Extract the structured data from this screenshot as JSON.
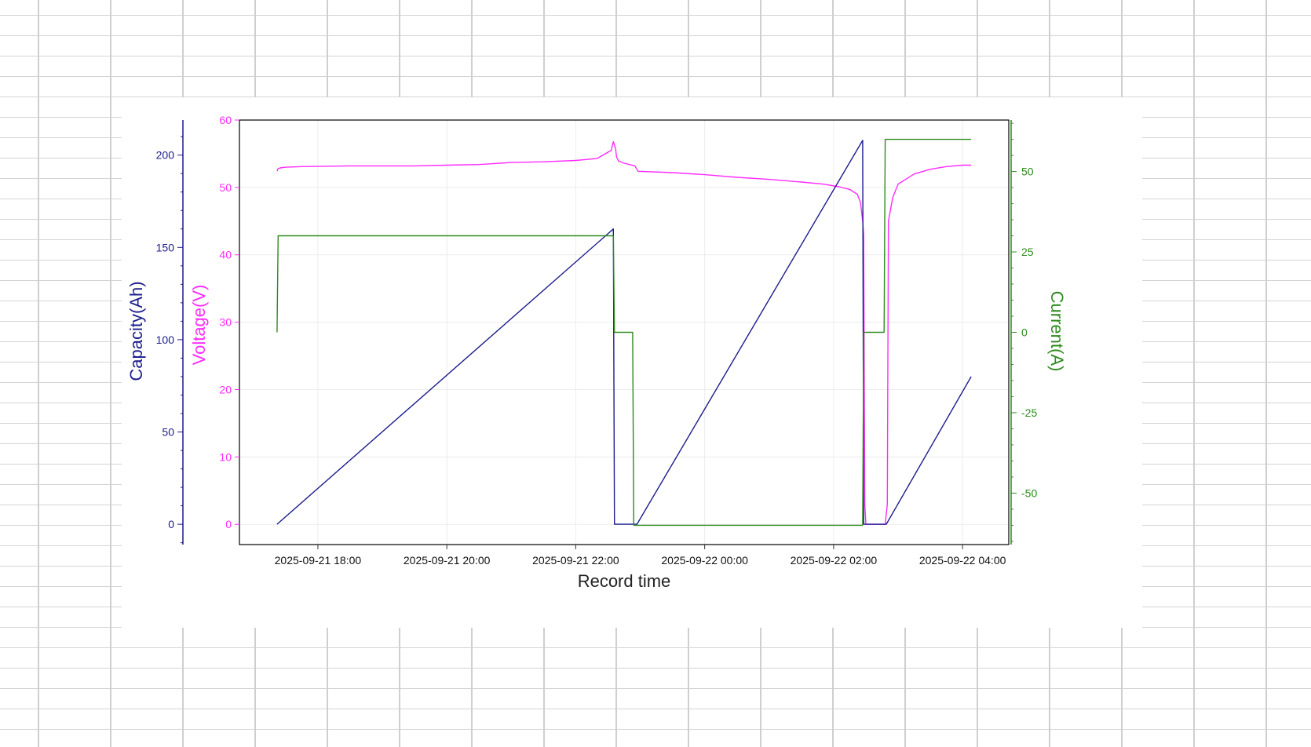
{
  "chart_data": {
    "type": "line",
    "xlabel": "Record time",
    "x_tick_labels": [
      "2025-09-21 18:00",
      "2025-09-21 20:00",
      "2025-09-21 22:00",
      "2025-09-22 00:00",
      "2025-09-22 02:00",
      "2025-09-22 04:00"
    ],
    "x_ticks": [
      "2025-09-21T18:00",
      "2025-09-21T20:00",
      "2025-09-21T22:00",
      "2025-09-22T00:00",
      "2025-09-22T02:00",
      "2025-09-22T04:00"
    ],
    "xlim": [
      "2025-09-21T16:47",
      "2025-09-22T04:43"
    ],
    "grid": true,
    "axes": {
      "voltage": {
        "label": "Voltage(V)",
        "side": "left-inner",
        "ylim": [
          -3,
          60
        ],
        "ticks": [
          0,
          10,
          20,
          30,
          40,
          50,
          60
        ],
        "color": "#ff2bff"
      },
      "capacity": {
        "label": "Capacity(Ah)",
        "side": "left-outer",
        "ylim": [
          -11,
          219
        ],
        "ticks": [
          0,
          50,
          100,
          150,
          200
        ],
        "color": "#1c1c8c"
      },
      "current": {
        "label": "Current(A)",
        "side": "right",
        "ylim": [
          -66,
          66
        ],
        "ticks": [
          50,
          25,
          0,
          -25,
          -50
        ],
        "tick_labels": [
          "50",
          "25",
          "0",
          "-25",
          "-50"
        ],
        "color": "#2e8b1e"
      }
    },
    "series": [
      {
        "name": "Voltage(V)",
        "axis": "voltage",
        "color": "#ff2bff",
        "x": [
          "2025-09-21T17:22",
          "2025-09-21T17:23",
          "2025-09-21T17:25",
          "2025-09-21T17:30",
          "2025-09-21T17:45",
          "2025-09-21T18:30",
          "2025-09-21T19:30",
          "2025-09-21T20:00",
          "2025-09-21T20:30",
          "2025-09-21T21:00",
          "2025-09-21T21:30",
          "2025-09-21T22:00",
          "2025-09-21T22:20",
          "2025-09-21T22:33",
          "2025-09-21T22:35",
          "2025-09-21T22:37",
          "2025-09-21T22:38",
          "2025-09-21T22:40",
          "2025-09-21T22:45",
          "2025-09-21T22:50",
          "2025-09-21T22:55",
          "2025-09-21T22:58",
          "2025-09-21T23:30",
          "2025-09-22T00:00",
          "2025-09-22T00:30",
          "2025-09-22T01:00",
          "2025-09-22T01:30",
          "2025-09-22T01:50",
          "2025-09-22T02:05",
          "2025-09-22T02:15",
          "2025-09-22T02:22",
          "2025-09-22T02:25",
          "2025-09-22T02:27",
          "2025-09-22T02:28",
          "2025-09-22T02:29",
          "2025-09-22T02:30",
          "2025-09-22T02:48",
          "2025-09-22T02:50",
          "2025-09-22T02:51",
          "2025-09-22T02:55",
          "2025-09-22T03:00",
          "2025-09-22T03:15",
          "2025-09-22T03:30",
          "2025-09-22T03:45",
          "2025-09-22T04:00",
          "2025-09-22T04:08"
        ],
        "values": [
          52.4,
          52.8,
          52.9,
          53.0,
          53.1,
          53.2,
          53.2,
          53.3,
          53.4,
          53.7,
          53.8,
          54.0,
          54.3,
          55.5,
          56.8,
          55.8,
          54.5,
          53.9,
          53.6,
          53.4,
          53.2,
          52.4,
          52.2,
          51.9,
          51.5,
          51.2,
          50.8,
          50.5,
          50.1,
          49.7,
          49.0,
          47.8,
          45.0,
          43.0,
          3.0,
          0.0,
          0.0,
          3.0,
          45.0,
          48.5,
          50.5,
          52.0,
          52.7,
          53.1,
          53.3,
          53.3
        ]
      },
      {
        "name": "Capacity(Ah)",
        "axis": "capacity",
        "color": "#1c1c8c",
        "x": [
          "2025-09-21T17:22",
          "2025-09-21T22:35",
          "2025-09-21T22:36",
          "2025-09-21T22:57",
          "2025-09-22T02:27",
          "2025-09-22T02:28",
          "2025-09-22T02:49",
          "2025-09-22T04:08"
        ],
        "values": [
          0,
          160,
          0,
          0,
          208,
          0,
          0,
          80
        ]
      },
      {
        "name": "Current(A)",
        "axis": "current",
        "color": "#2e8b1e",
        "x": [
          "2025-09-21T17:22",
          "2025-09-21T17:23",
          "2025-09-21T22:35",
          "2025-09-21T22:36",
          "2025-09-21T22:53",
          "2025-09-21T22:54",
          "2025-09-22T02:27",
          "2025-09-22T02:28",
          "2025-09-22T02:47",
          "2025-09-22T02:48",
          "2025-09-22T04:08"
        ],
        "values": [
          0,
          30,
          30,
          0,
          0,
          -60,
          -60,
          0,
          0,
          60,
          60
        ]
      }
    ]
  }
}
